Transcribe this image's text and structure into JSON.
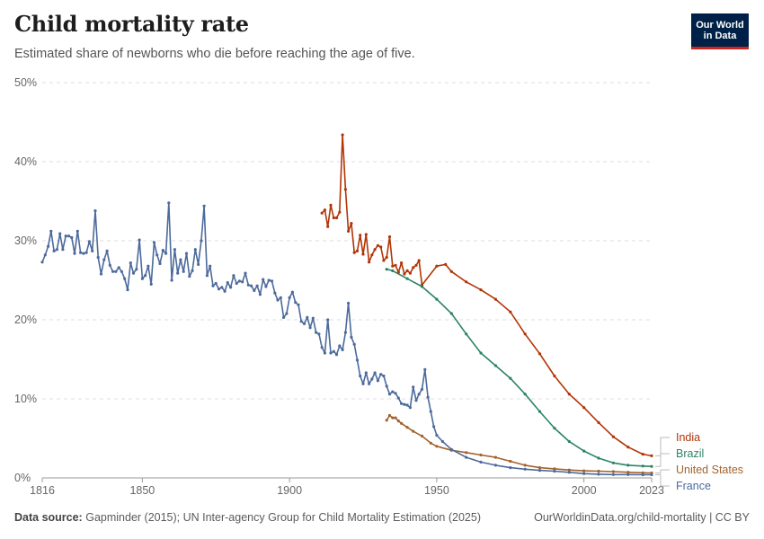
{
  "title": "Child mortality rate",
  "subtitle": "Estimated share of newborns who die before reaching the age of five.",
  "logo": {
    "line1": "Our World",
    "line2": "in Data"
  },
  "footer": {
    "source_label": "Data source:",
    "source_text": "Gapminder (2015); UN Inter-agency Group for Child Mortality Estimation (2025)",
    "url": "OurWorldinData.org/child-mortality | CC BY"
  },
  "chart_data": {
    "type": "line",
    "title": "Child mortality rate",
    "xlabel": "",
    "ylabel": "",
    "xlim": [
      1816,
      2023
    ],
    "ylim": [
      0,
      50
    ],
    "x_ticks": [
      1816,
      1850,
      1900,
      1950,
      2000,
      2023
    ],
    "y_ticks": [
      0,
      10,
      20,
      30,
      40,
      50
    ],
    "y_tick_labels": [
      "0%",
      "10%",
      "20%",
      "30%",
      "40%",
      "50%"
    ],
    "grid": "horizontal dashed",
    "series": [
      {
        "name": "India",
        "color": "#b13507",
        "points": [
          [
            1911,
            33.5
          ],
          [
            1912,
            33.9
          ],
          [
            1913,
            31.8
          ],
          [
            1914,
            34.5
          ],
          [
            1915,
            32.9
          ],
          [
            1916,
            32.9
          ],
          [
            1917,
            33.6
          ],
          [
            1918,
            43.4
          ],
          [
            1919,
            36.5
          ],
          [
            1920,
            31.2
          ],
          [
            1921,
            32.2
          ],
          [
            1922,
            28.5
          ],
          [
            1923,
            28.7
          ],
          [
            1924,
            30.7
          ],
          [
            1925,
            28.3
          ],
          [
            1926,
            30.8
          ],
          [
            1927,
            27.3
          ],
          [
            1928,
            28.2
          ],
          [
            1929,
            28.9
          ],
          [
            1930,
            29.4
          ],
          [
            1931,
            29.2
          ],
          [
            1932,
            27.5
          ],
          [
            1933,
            27.9
          ],
          [
            1934,
            30.5
          ],
          [
            1935,
            26.8
          ],
          [
            1936,
            26.9
          ],
          [
            1937,
            26.0
          ],
          [
            1938,
            27.2
          ],
          [
            1939,
            25.8
          ],
          [
            1940,
            26.2
          ],
          [
            1941,
            25.9
          ],
          [
            1942,
            26.6
          ],
          [
            1943,
            26.9
          ],
          [
            1944,
            27.5
          ],
          [
            1945,
            24.4
          ],
          [
            1950,
            26.8
          ],
          [
            1953,
            27.0
          ],
          [
            1955,
            26.1
          ],
          [
            1960,
            24.8
          ],
          [
            1965,
            23.8
          ],
          [
            1970,
            22.6
          ],
          [
            1975,
            21.0
          ],
          [
            1980,
            18.2
          ],
          [
            1985,
            15.7
          ],
          [
            1990,
            12.9
          ],
          [
            1995,
            10.6
          ],
          [
            2000,
            8.9
          ],
          [
            2005,
            7.0
          ],
          [
            2010,
            5.2
          ],
          [
            2015,
            3.9
          ],
          [
            2020,
            3.0
          ],
          [
            2023,
            2.8
          ]
        ]
      },
      {
        "name": "Brazil",
        "color": "#2c8465",
        "points": [
          [
            1933,
            26.4
          ],
          [
            1935,
            26.2
          ],
          [
            1940,
            25.2
          ],
          [
            1945,
            24.2
          ],
          [
            1950,
            22.6
          ],
          [
            1955,
            20.8
          ],
          [
            1960,
            18.2
          ],
          [
            1965,
            15.8
          ],
          [
            1970,
            14.2
          ],
          [
            1975,
            12.6
          ],
          [
            1980,
            10.6
          ],
          [
            1985,
            8.4
          ],
          [
            1990,
            6.3
          ],
          [
            1995,
            4.6
          ],
          [
            2000,
            3.4
          ],
          [
            2005,
            2.5
          ],
          [
            2010,
            1.9
          ],
          [
            2015,
            1.6
          ],
          [
            2020,
            1.5
          ],
          [
            2023,
            1.45
          ]
        ]
      },
      {
        "name": "United States",
        "color": "#a2622c",
        "points": [
          [
            1933,
            7.3
          ],
          [
            1934,
            7.9
          ],
          [
            1935,
            7.6
          ],
          [
            1936,
            7.6
          ],
          [
            1937,
            7.2
          ],
          [
            1938,
            6.9
          ],
          [
            1940,
            6.4
          ],
          [
            1942,
            5.9
          ],
          [
            1945,
            5.3
          ],
          [
            1948,
            4.4
          ],
          [
            1950,
            4.0
          ],
          [
            1955,
            3.5
          ],
          [
            1960,
            3.2
          ],
          [
            1965,
            2.9
          ],
          [
            1970,
            2.6
          ],
          [
            1975,
            2.1
          ],
          [
            1980,
            1.6
          ],
          [
            1985,
            1.3
          ],
          [
            1990,
            1.15
          ],
          [
            1995,
            1.0
          ],
          [
            2000,
            0.9
          ],
          [
            2005,
            0.85
          ],
          [
            2010,
            0.8
          ],
          [
            2015,
            0.72
          ],
          [
            2020,
            0.65
          ],
          [
            2023,
            0.63
          ]
        ]
      },
      {
        "name": "France",
        "color": "#4c6a9c",
        "points": [
          [
            1816,
            27.3
          ],
          [
            1817,
            28.2
          ],
          [
            1818,
            29.3
          ],
          [
            1819,
            31.2
          ],
          [
            1820,
            28.7
          ],
          [
            1821,
            28.9
          ],
          [
            1822,
            30.9
          ],
          [
            1823,
            28.9
          ],
          [
            1824,
            30.6
          ],
          [
            1825,
            30.6
          ],
          [
            1826,
            30.4
          ],
          [
            1827,
            28.4
          ],
          [
            1828,
            31.2
          ],
          [
            1829,
            28.5
          ],
          [
            1830,
            28.4
          ],
          [
            1831,
            28.5
          ],
          [
            1832,
            29.9
          ],
          [
            1833,
            28.7
          ],
          [
            1834,
            33.8
          ],
          [
            1835,
            27.9
          ],
          [
            1836,
            25.8
          ],
          [
            1837,
            27.6
          ],
          [
            1838,
            28.7
          ],
          [
            1839,
            26.9
          ],
          [
            1840,
            26.1
          ],
          [
            1841,
            26.1
          ],
          [
            1842,
            26.6
          ],
          [
            1843,
            26.1
          ],
          [
            1844,
            25.2
          ],
          [
            1845,
            23.8
          ],
          [
            1846,
            27.2
          ],
          [
            1847,
            25.9
          ],
          [
            1848,
            26.4
          ],
          [
            1849,
            30.1
          ],
          [
            1850,
            25.2
          ],
          [
            1851,
            25.6
          ],
          [
            1852,
            26.8
          ],
          [
            1853,
            24.5
          ],
          [
            1854,
            29.8
          ],
          [
            1855,
            28.2
          ],
          [
            1856,
            27.1
          ],
          [
            1857,
            28.8
          ],
          [
            1858,
            28.4
          ],
          [
            1859,
            34.8
          ],
          [
            1860,
            25.0
          ],
          [
            1861,
            28.9
          ],
          [
            1862,
            25.9
          ],
          [
            1863,
            27.6
          ],
          [
            1864,
            26.1
          ],
          [
            1865,
            28.4
          ],
          [
            1866,
            25.5
          ],
          [
            1867,
            26.2
          ],
          [
            1868,
            28.9
          ],
          [
            1869,
            27.0
          ],
          [
            1870,
            30.0
          ],
          [
            1871,
            34.4
          ],
          [
            1872,
            25.6
          ],
          [
            1873,
            26.8
          ],
          [
            1874,
            24.3
          ],
          [
            1875,
            24.6
          ],
          [
            1876,
            23.9
          ],
          [
            1877,
            24.1
          ],
          [
            1878,
            23.6
          ],
          [
            1879,
            24.7
          ],
          [
            1880,
            24.1
          ],
          [
            1881,
            25.6
          ],
          [
            1882,
            24.6
          ],
          [
            1883,
            24.9
          ],
          [
            1884,
            24.8
          ],
          [
            1885,
            25.9
          ],
          [
            1886,
            24.4
          ],
          [
            1887,
            24.3
          ],
          [
            1888,
            23.7
          ],
          [
            1889,
            24.3
          ],
          [
            1890,
            23.2
          ],
          [
            1891,
            25.1
          ],
          [
            1892,
            24.2
          ],
          [
            1893,
            25.0
          ],
          [
            1894,
            24.9
          ],
          [
            1895,
            23.4
          ],
          [
            1896,
            22.5
          ],
          [
            1897,
            22.8
          ],
          [
            1898,
            20.3
          ],
          [
            1899,
            20.8
          ],
          [
            1900,
            22.8
          ],
          [
            1901,
            23.5
          ],
          [
            1902,
            22.2
          ],
          [
            1903,
            21.9
          ],
          [
            1904,
            19.8
          ],
          [
            1905,
            19.5
          ],
          [
            1906,
            20.3
          ],
          [
            1907,
            19.0
          ],
          [
            1908,
            20.2
          ],
          [
            1909,
            18.4
          ],
          [
            1910,
            18.2
          ],
          [
            1911,
            16.5
          ],
          [
            1912,
            15.8
          ],
          [
            1913,
            20.0
          ],
          [
            1914,
            15.8
          ],
          [
            1915,
            16.0
          ],
          [
            1916,
            15.6
          ],
          [
            1917,
            16.7
          ],
          [
            1918,
            16.2
          ],
          [
            1919,
            18.4
          ],
          [
            1920,
            22.1
          ],
          [
            1921,
            17.8
          ],
          [
            1922,
            16.9
          ],
          [
            1923,
            14.9
          ],
          [
            1924,
            12.9
          ],
          [
            1925,
            11.9
          ],
          [
            1926,
            13.3
          ],
          [
            1927,
            11.9
          ],
          [
            1928,
            12.5
          ],
          [
            1929,
            13.3
          ],
          [
            1930,
            12.3
          ],
          [
            1931,
            13.1
          ],
          [
            1932,
            12.9
          ],
          [
            1933,
            11.6
          ],
          [
            1934,
            10.6
          ],
          [
            1935,
            10.9
          ],
          [
            1936,
            10.7
          ],
          [
            1937,
            10.1
          ],
          [
            1938,
            9.4
          ],
          [
            1939,
            9.3
          ],
          [
            1940,
            9.2
          ],
          [
            1941,
            8.9
          ],
          [
            1942,
            11.5
          ],
          [
            1943,
            9.8
          ],
          [
            1944,
            10.6
          ],
          [
            1945,
            11.2
          ],
          [
            1946,
            13.7
          ],
          [
            1947,
            10.2
          ],
          [
            1948,
            8.4
          ],
          [
            1949,
            6.5
          ],
          [
            1950,
            5.4
          ],
          [
            1952,
            4.6
          ],
          [
            1955,
            3.6
          ],
          [
            1960,
            2.6
          ],
          [
            1965,
            2.0
          ],
          [
            1970,
            1.6
          ],
          [
            1975,
            1.3
          ],
          [
            1980,
            1.1
          ],
          [
            1985,
            0.95
          ],
          [
            1990,
            0.85
          ],
          [
            1995,
            0.7
          ],
          [
            2000,
            0.55
          ],
          [
            2005,
            0.47
          ],
          [
            2010,
            0.42
          ],
          [
            2015,
            0.42
          ],
          [
            2020,
            0.4
          ],
          [
            2023,
            0.4
          ]
        ]
      }
    ],
    "labels": [
      {
        "name": "India",
        "color": "#b13507"
      },
      {
        "name": "Brazil",
        "color": "#2c8465"
      },
      {
        "name": "United States",
        "color": "#a2622c"
      },
      {
        "name": "France",
        "color": "#4c6a9c"
      }
    ]
  }
}
